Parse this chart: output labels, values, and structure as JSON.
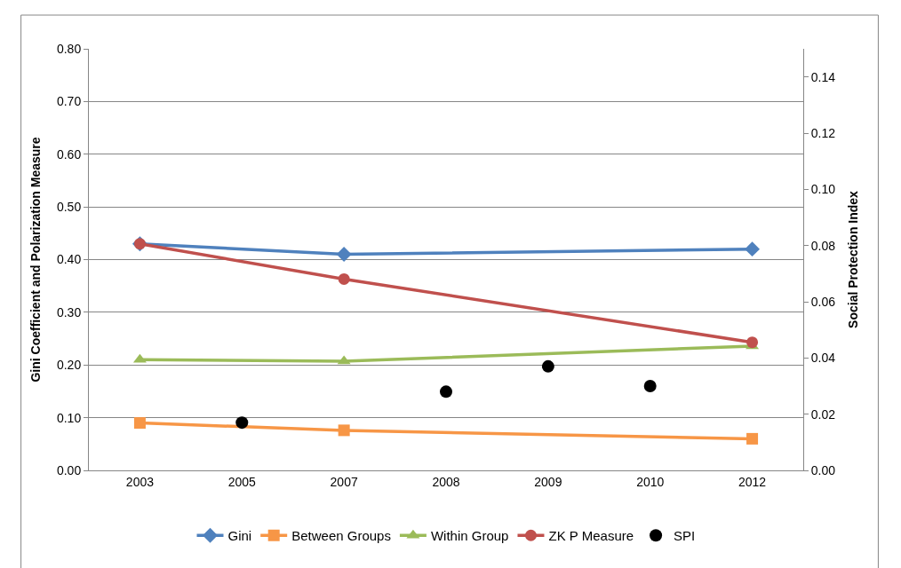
{
  "chart_data": {
    "type": "line",
    "ylabel": "Gini Coefficient and Polarization Measure",
    "y2label": "Social Protection Index",
    "categories": [
      "2003",
      "2005",
      "2007",
      "2008",
      "2009",
      "2010",
      "2012"
    ],
    "series": [
      {
        "name": "Gini",
        "color": "#4f81bd",
        "marker": "diamond",
        "values": [
          0.43,
          null,
          0.41,
          null,
          null,
          null,
          0.42
        ]
      },
      {
        "name": "Between Groups",
        "color": "#f79646",
        "marker": "square",
        "values": [
          0.09,
          null,
          0.076,
          null,
          null,
          null,
          0.06
        ]
      },
      {
        "name": "Within Group",
        "color": "#9bbb59",
        "marker": "triangle",
        "values": [
          0.21,
          null,
          0.207,
          null,
          null,
          null,
          0.236
        ]
      },
      {
        "name": "ZK P Measure",
        "color": "#c0504d",
        "marker": "circle",
        "values": [
          0.43,
          null,
          0.363,
          null,
          null,
          null,
          0.243
        ]
      },
      {
        "name": "SPI",
        "color": "#000000",
        "type": "scatter",
        "marker": "circle",
        "axis": "y2",
        "values": [
          null,
          0.017,
          null,
          0.028,
          0.037,
          0.03,
          null
        ]
      }
    ],
    "ylim": [
      0,
      0.8
    ],
    "yticks": [
      {
        "value": 0,
        "label": "0.00"
      },
      {
        "value": 0.1,
        "label": "0.10"
      },
      {
        "value": 0.2,
        "label": "0.20"
      },
      {
        "value": 0.3,
        "label": "0.30"
      },
      {
        "value": 0.4,
        "label": "0.40"
      },
      {
        "value": 0.5,
        "label": "0.50"
      },
      {
        "value": 0.6,
        "label": "0.60"
      },
      {
        "value": 0.7,
        "label": "0.70"
      },
      {
        "value": 0.8,
        "label": "0.80"
      }
    ],
    "y2lim": [
      0,
      0.15
    ],
    "y2ticks": [
      {
        "value": 0,
        "label": "0.00"
      },
      {
        "value": 0.02,
        "label": "0.02"
      },
      {
        "value": 0.04,
        "label": "0.04"
      },
      {
        "value": 0.06,
        "label": "0.06"
      },
      {
        "value": 0.08,
        "label": "0.08"
      },
      {
        "value": 0.1,
        "label": "0.10"
      },
      {
        "value": 0.12,
        "label": "0.12"
      },
      {
        "value": 0.14,
        "label": "0.14"
      }
    ],
    "grid": "y",
    "legend": "bottom"
  }
}
